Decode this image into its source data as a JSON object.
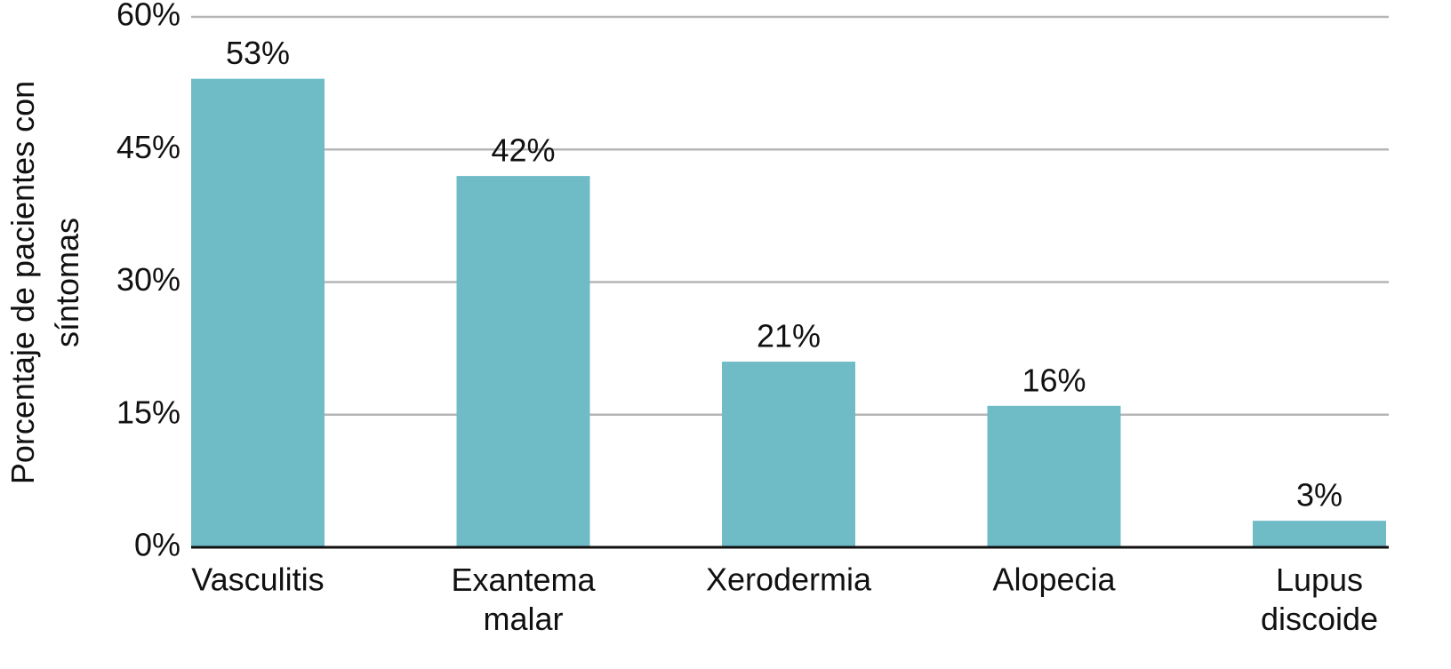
{
  "chart_data": {
    "type": "bar",
    "y_label": "Porcentaje de pacientes con síntomas",
    "categories": [
      "Vasculitis",
      "Exantema malar",
      "Xerodermia",
      "Alopecia",
      "Lupus discoide"
    ],
    "values": [
      53,
      42,
      21,
      16,
      3
    ],
    "value_labels": [
      "53%",
      "42%",
      "21%",
      "16%",
      "3%"
    ],
    "color": "#6fbcc7",
    "ylim": [
      0,
      60
    ],
    "yticks": [
      {
        "value": 0,
        "label": "0%"
      },
      {
        "value": 15,
        "label": "15%"
      },
      {
        "value": 30,
        "label": "30%"
      },
      {
        "value": 45,
        "label": "45%"
      },
      {
        "value": 60,
        "label": "60%"
      }
    ],
    "grid": true
  }
}
